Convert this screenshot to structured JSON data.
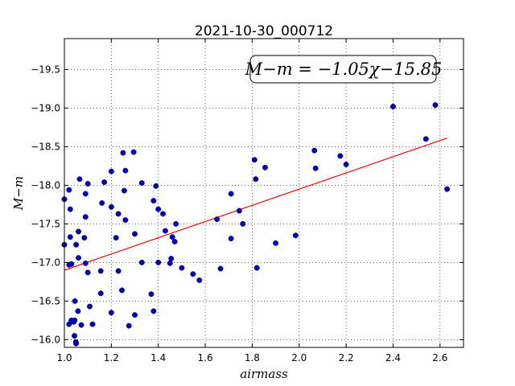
{
  "chart_data": {
    "type": "scatter",
    "title": "2021-10-30_000712",
    "xlabel": "airmass",
    "ylabel": "M−m",
    "xlim": [
      1.0,
      2.7
    ],
    "ylim": [
      -19.9,
      -15.9
    ],
    "y_inverted": true,
    "xticks": [
      1.0,
      1.2,
      1.4,
      1.6,
      1.8,
      2.0,
      2.2,
      2.4,
      2.6
    ],
    "xtick_labels": [
      "1.0",
      "1.2",
      "1.4",
      "1.6",
      "1.8",
      "2.0",
      "2.2",
      "2.4",
      "2.6"
    ],
    "yticks": [
      -16.0,
      -16.5,
      -17.0,
      -17.5,
      -18.0,
      -18.5,
      -19.0,
      -19.5
    ],
    "ytick_labels": [
      "−16.0",
      "−16.5",
      "−17.0",
      "−17.5",
      "−18.0",
      "−18.5",
      "−19.0",
      "−19.5"
    ],
    "grid": true,
    "annotation": "M−m = −1.05χ−15.85",
    "fit_line": {
      "slope": -1.05,
      "intercept": -15.85,
      "x_range": [
        1.0,
        2.63
      ],
      "color": "#ff0000"
    },
    "marker_color": "#0000cc",
    "series": [
      {
        "type": "scatter",
        "points": [
          [
            1.05,
            -15.95
          ],
          [
            1.049,
            -15.97
          ],
          [
            1.043,
            -16.05
          ],
          [
            1.02,
            -16.2
          ],
          [
            1.03,
            -16.25
          ],
          [
            1.044,
            -16.25
          ],
          [
            1.04,
            -16.23
          ],
          [
            1.072,
            -16.19
          ],
          [
            1.12,
            -16.2
          ],
          [
            1.275,
            -16.18
          ],
          [
            1.058,
            -16.37
          ],
          [
            1.108,
            -16.43
          ],
          [
            1.2,
            -16.35
          ],
          [
            1.3,
            -16.32
          ],
          [
            1.38,
            -16.37
          ],
          [
            1.045,
            -16.5
          ],
          [
            1.155,
            -16.6
          ],
          [
            1.245,
            -16.64
          ],
          [
            1.37,
            -16.59
          ],
          [
            1.575,
            -16.77
          ],
          [
            1.548,
            -16.85
          ],
          [
            1.23,
            -16.89
          ],
          [
            1.155,
            -16.89
          ],
          [
            1.1,
            -16.87
          ],
          [
            1.02,
            -16.97
          ],
          [
            1.03,
            -16.98
          ],
          [
            1.09,
            -16.99
          ],
          [
            1.33,
            -17.0
          ],
          [
            1.4,
            -17.0
          ],
          [
            1.45,
            -16.99
          ],
          [
            1.455,
            -17.05
          ],
          [
            1.5,
            -16.93
          ],
          [
            1.665,
            -16.92
          ],
          [
            1.82,
            -16.93
          ],
          [
            1.06,
            -17.06
          ],
          [
            1.0,
            -17.23
          ],
          [
            1.05,
            -17.23
          ],
          [
            1.025,
            -17.33
          ],
          [
            1.085,
            -17.32
          ],
          [
            1.22,
            -17.32
          ],
          [
            1.06,
            -17.4
          ],
          [
            1.3,
            -17.37
          ],
          [
            1.43,
            -17.41
          ],
          [
            1.47,
            -17.27
          ],
          [
            1.46,
            -17.33
          ],
          [
            1.71,
            -17.31
          ],
          [
            1.9,
            -17.25
          ],
          [
            1.985,
            -17.35
          ],
          [
            1.475,
            -17.5
          ],
          [
            1.76,
            -17.5
          ],
          [
            1.26,
            -17.55
          ],
          [
            1.65,
            -17.56
          ],
          [
            1.09,
            -17.59
          ],
          [
            1.025,
            -17.69
          ],
          [
            1.23,
            -17.63
          ],
          [
            1.42,
            -17.63
          ],
          [
            1.4,
            -17.69
          ],
          [
            1.745,
            -17.67
          ],
          [
            1.2,
            -17.72
          ],
          [
            1.16,
            -17.77
          ],
          [
            1.38,
            -17.8
          ],
          [
            1.0,
            -17.82
          ],
          [
            1.09,
            -17.89
          ],
          [
            1.02,
            -17.94
          ],
          [
            1.255,
            -17.93
          ],
          [
            1.71,
            -17.89
          ],
          [
            1.1,
            -18.02
          ],
          [
            1.17,
            -18.04
          ],
          [
            1.33,
            -18.03
          ],
          [
            1.39,
            -17.99
          ],
          [
            1.065,
            -18.08
          ],
          [
            1.815,
            -18.08
          ],
          [
            1.2,
            -18.18
          ],
          [
            1.26,
            -18.19
          ],
          [
            1.855,
            -18.23
          ],
          [
            2.07,
            -18.22
          ],
          [
            2.2,
            -18.27
          ],
          [
            1.81,
            -18.33
          ],
          [
            2.175,
            -18.38
          ],
          [
            1.25,
            -18.42
          ],
          [
            1.295,
            -18.43
          ],
          [
            2.065,
            -18.45
          ],
          [
            2.54,
            -18.6
          ],
          [
            2.63,
            -17.95
          ],
          [
            2.4,
            -19.02
          ],
          [
            2.58,
            -19.04
          ]
        ]
      }
    ]
  }
}
